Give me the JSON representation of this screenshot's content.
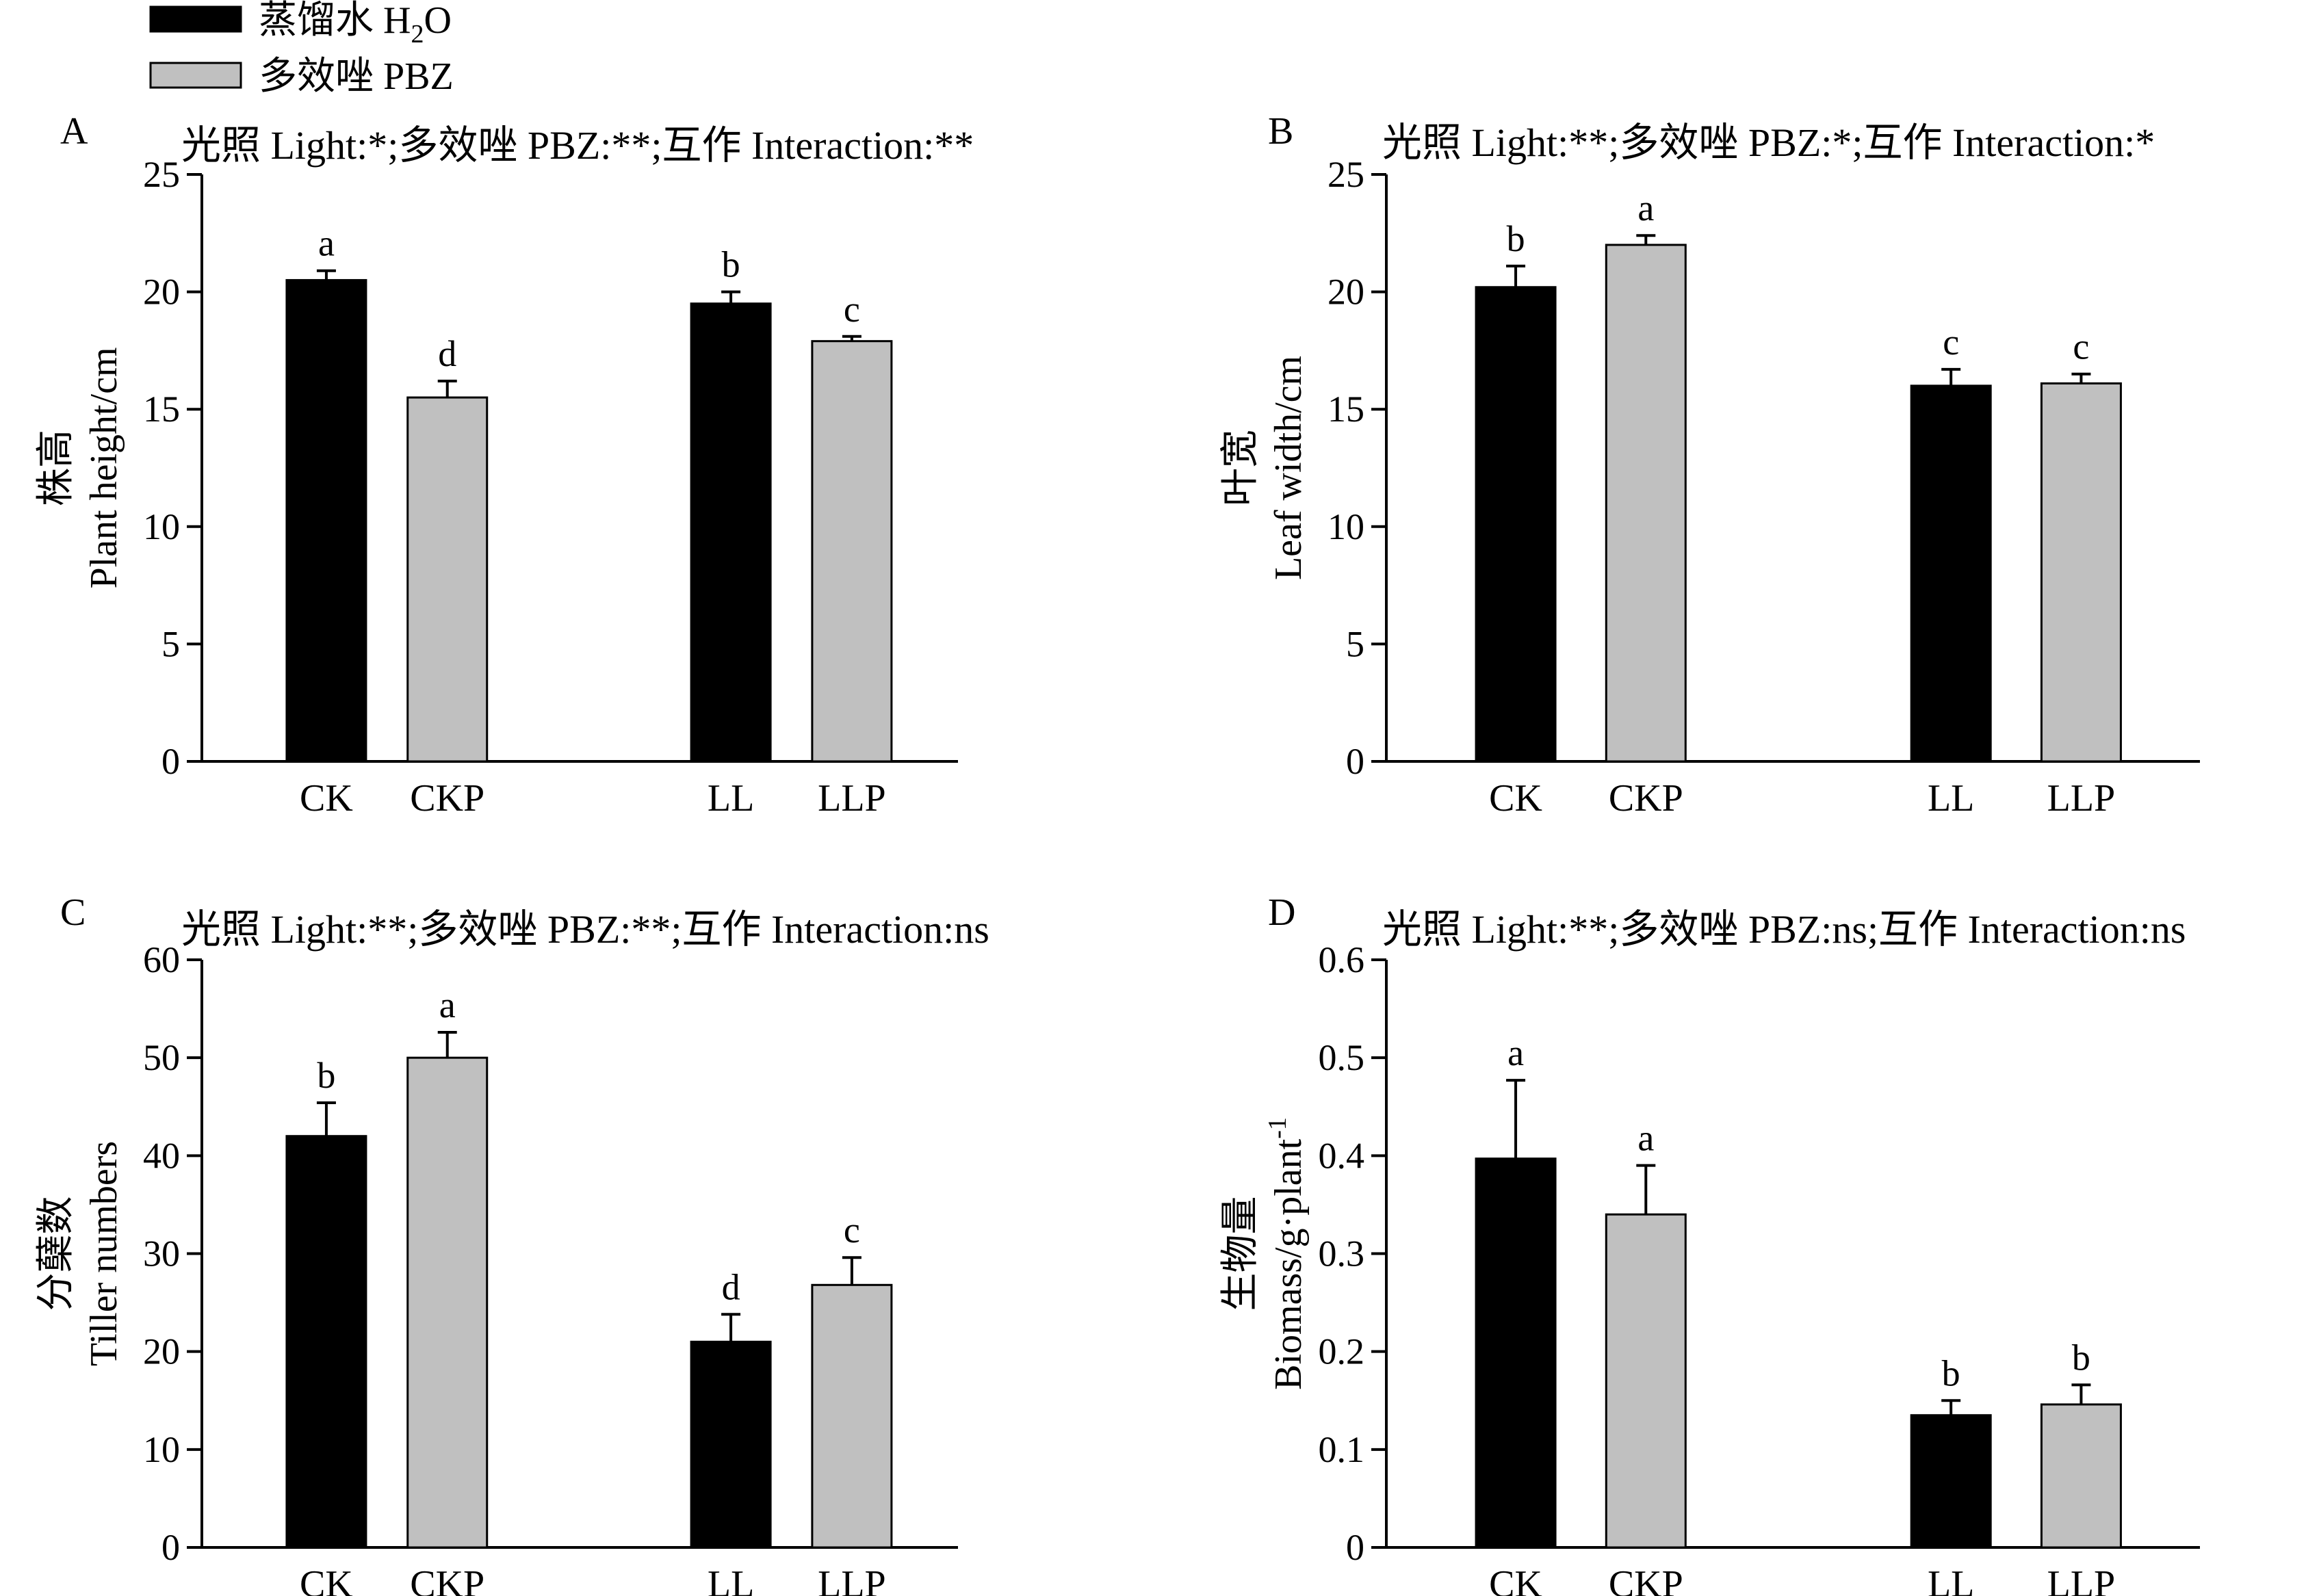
{
  "legend": {
    "entries": [
      {
        "label_cn": "蒸馏水",
        "label_en": "H",
        "sub": "2",
        "tail": "O",
        "color": "#000000"
      },
      {
        "label_cn": "多效唑",
        "label_en": "PBZ",
        "color": "#c0c0c0"
      }
    ]
  },
  "chart_data": [
    {
      "letter": "A",
      "type": "bar",
      "title": "光照 Light:*;多效唑 PBZ:**;互作 Interaction:**",
      "ylabel_cn": "株高",
      "ylabel_en": "Plant height/cm",
      "ylim": [
        0,
        25
      ],
      "yticks": [
        "0",
        "5",
        "10",
        "15",
        "20",
        "25"
      ],
      "categories": [
        "CK",
        "CKP",
        "LL",
        "LLP"
      ],
      "values": [
        20.5,
        15.5,
        19.5,
        17.9
      ],
      "errors": [
        0.4,
        0.7,
        0.5,
        0.2
      ],
      "letters": [
        "a",
        "d",
        "b",
        "c"
      ]
    },
    {
      "letter": "B",
      "type": "bar",
      "title": "光照 Light:**;多效唑 PBZ:*;互作 Interaction:*",
      "ylabel_cn": "叶宽",
      "ylabel_en": "Leaf width/cm",
      "ylim": [
        0,
        25
      ],
      "yticks": [
        "0",
        "5",
        "10",
        "15",
        "20",
        "25"
      ],
      "categories": [
        "CK",
        "CKP",
        "LL",
        "LLP"
      ],
      "values": [
        20.2,
        22.0,
        16.0,
        16.1
      ],
      "errors": [
        0.9,
        0.4,
        0.7,
        0.4
      ],
      "letters": [
        "b",
        "a",
        "c",
        "c"
      ]
    },
    {
      "letter": "C",
      "type": "bar",
      "title": "光照 Light:**;多效唑 PBZ:**;互作 Interaction:ns",
      "ylabel_cn": "分蘖数",
      "ylabel_en": "Tiller numbers",
      "ylim": [
        0,
        60
      ],
      "yticks": [
        "0",
        "10",
        "20",
        "30",
        "40",
        "50",
        "60"
      ],
      "categories": [
        "CK",
        "CKP",
        "LL",
        "LLP"
      ],
      "values": [
        42.0,
        50.0,
        21.0,
        26.8
      ],
      "errors": [
        3.4,
        2.6,
        2.8,
        2.8
      ],
      "letters": [
        "b",
        "a",
        "d",
        "c"
      ]
    },
    {
      "letter": "D",
      "type": "bar",
      "title": "光照 Light:**;多效唑 PBZ:ns;互作 Interaction:ns",
      "ylabel_cn": "生物量",
      "ylabel_en": "Biomass/g·plant",
      "ylabel_sup": "-1",
      "ylim": [
        0,
        0.6
      ],
      "yticks": [
        "0",
        "0.1",
        "0.2",
        "0.3",
        "0.4",
        "0.5",
        "0.6"
      ],
      "categories": [
        "CK",
        "CKP",
        "LL",
        "LLP"
      ],
      "values": [
        0.397,
        0.34,
        0.135,
        0.146
      ],
      "errors": [
        0.08,
        0.05,
        0.015,
        0.02
      ],
      "letters": [
        "a",
        "a",
        "b",
        "b"
      ]
    }
  ]
}
